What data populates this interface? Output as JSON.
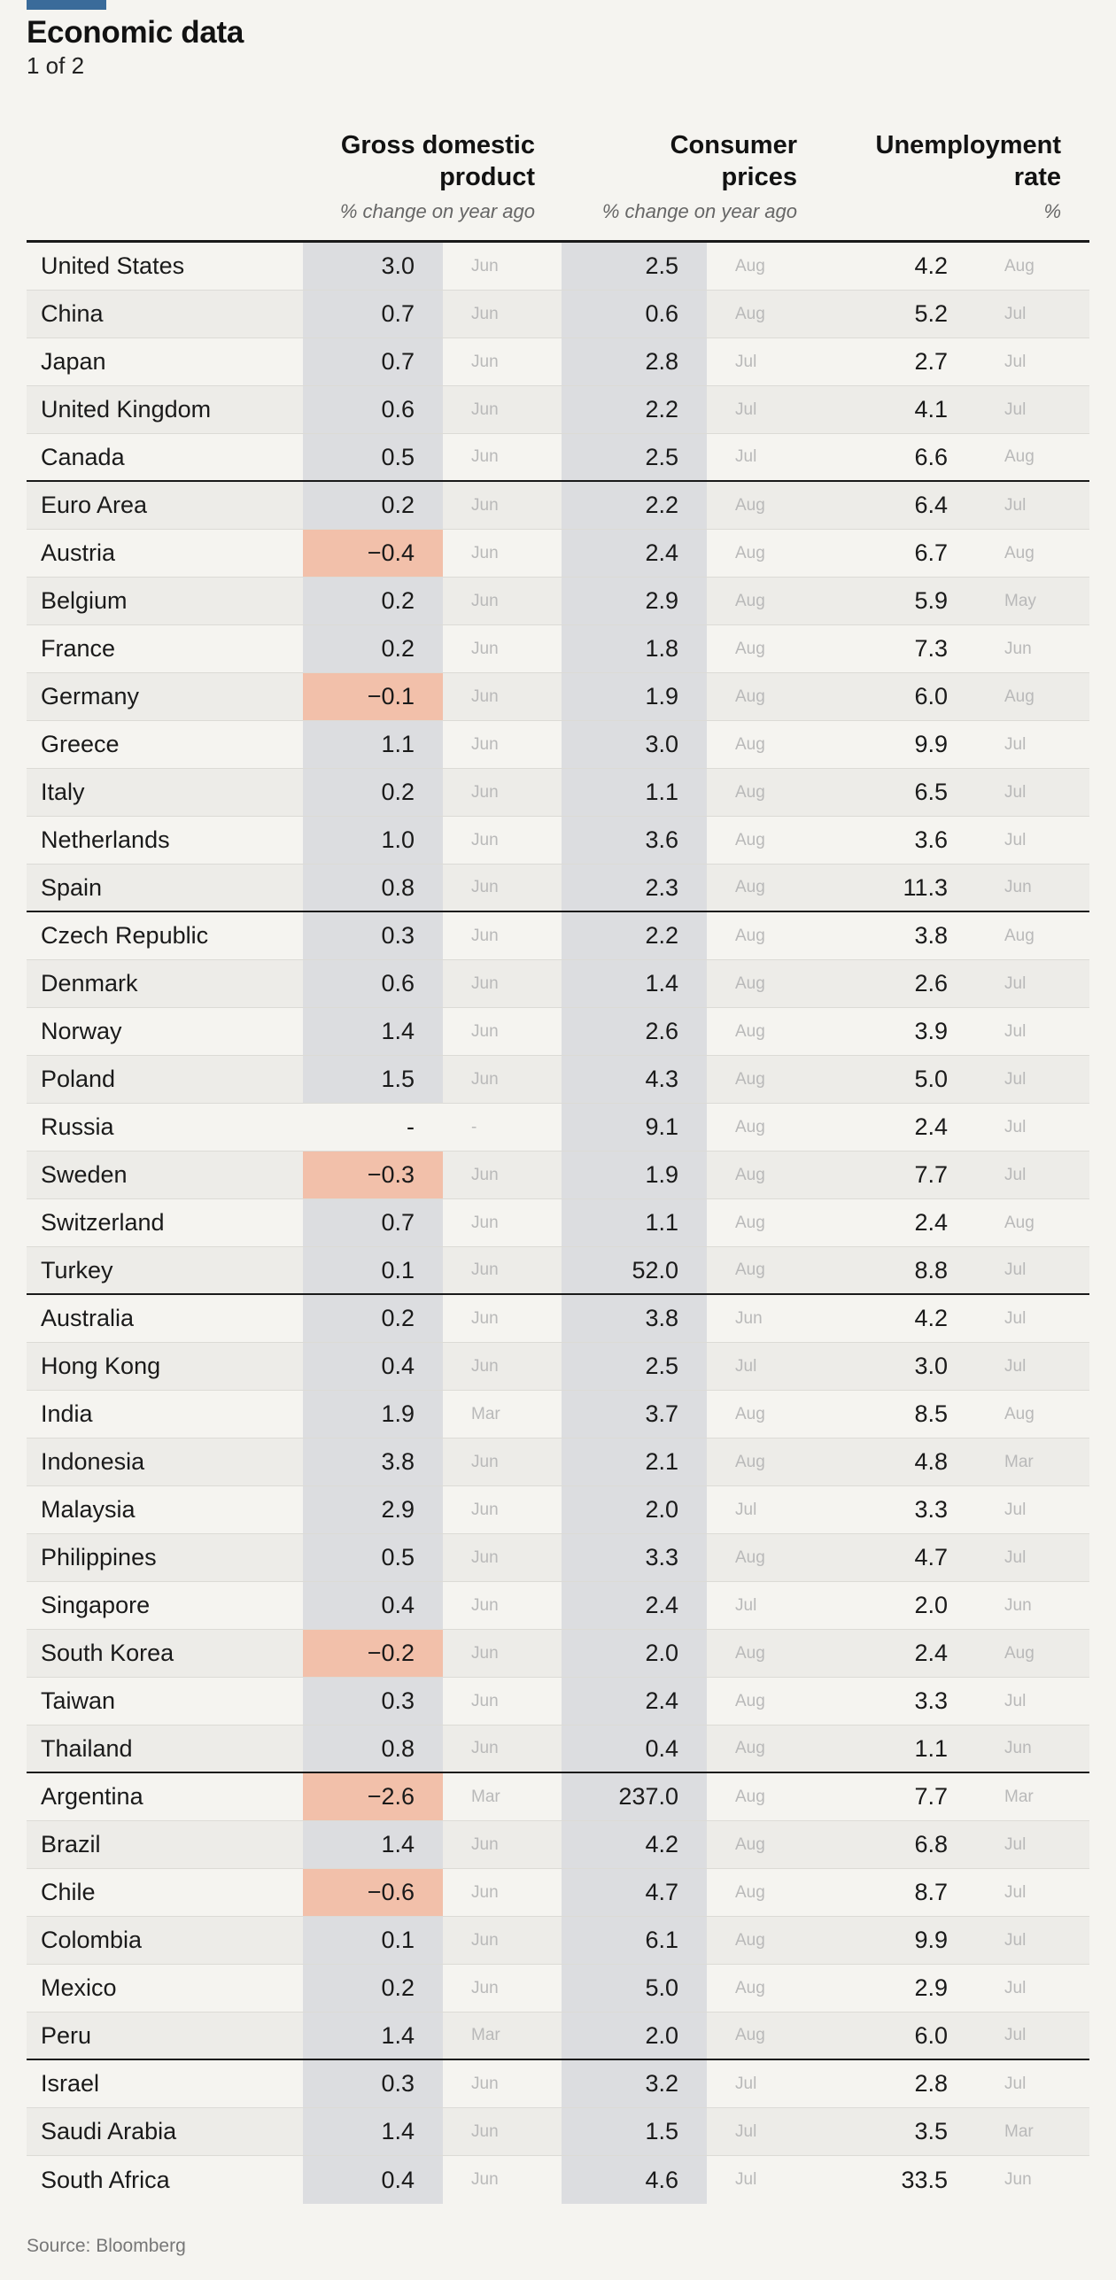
{
  "title": "Economic data",
  "subtitle": "1 of 2",
  "source": "Source: Bloomberg",
  "colors": {
    "accent_bar": "#3a6b9a",
    "value_fill": "#dcdde0",
    "negative_fill": "#f2c0aa"
  },
  "columns": [
    {
      "line1": "Gross domestic",
      "line2": "product",
      "unit": "% change on year ago"
    },
    {
      "line1": "Consumer",
      "line2": "prices",
      "unit": "% change on year ago"
    },
    {
      "line1": "Unemployment",
      "line2": "rate",
      "unit": "%"
    }
  ],
  "chart_data": {
    "type": "table",
    "title": "Economic data",
    "subtitle": "1 of 2",
    "columns": [
      "Gross domestic product",
      "Consumer prices",
      "Unemployment rate"
    ],
    "units": [
      "% change on year ago",
      "% change on year ago",
      "%"
    ],
    "groups": [
      {
        "rows": [
          [
            "United States",
            "3.0",
            "Jun",
            "2.5",
            "Aug",
            "4.2",
            "Aug"
          ],
          [
            "China",
            "0.7",
            "Jun",
            "0.6",
            "Aug",
            "5.2",
            "Jul"
          ],
          [
            "Japan",
            "0.7",
            "Jun",
            "2.8",
            "Jul",
            "2.7",
            "Jul"
          ],
          [
            "United Kingdom",
            "0.6",
            "Jun",
            "2.2",
            "Jul",
            "4.1",
            "Jul"
          ],
          [
            "Canada",
            "0.5",
            "Jun",
            "2.5",
            "Jul",
            "6.6",
            "Aug"
          ]
        ]
      },
      {
        "rows": [
          [
            "Euro Area",
            "0.2",
            "Jun",
            "2.2",
            "Aug",
            "6.4",
            "Jul"
          ],
          [
            "Austria",
            "−0.4",
            "Jun",
            "2.4",
            "Aug",
            "6.7",
            "Aug"
          ],
          [
            "Belgium",
            "0.2",
            "Jun",
            "2.9",
            "Aug",
            "5.9",
            "May"
          ],
          [
            "France",
            "0.2",
            "Jun",
            "1.8",
            "Aug",
            "7.3",
            "Jun"
          ],
          [
            "Germany",
            "−0.1",
            "Jun",
            "1.9",
            "Aug",
            "6.0",
            "Aug"
          ],
          [
            "Greece",
            "1.1",
            "Jun",
            "3.0",
            "Aug",
            "9.9",
            "Jul"
          ],
          [
            "Italy",
            "0.2",
            "Jun",
            "1.1",
            "Aug",
            "6.5",
            "Jul"
          ],
          [
            "Netherlands",
            "1.0",
            "Jun",
            "3.6",
            "Aug",
            "3.6",
            "Jul"
          ],
          [
            "Spain",
            "0.8",
            "Jun",
            "2.3",
            "Aug",
            "11.3",
            "Jun"
          ]
        ]
      },
      {
        "rows": [
          [
            "Czech Republic",
            "0.3",
            "Jun",
            "2.2",
            "Aug",
            "3.8",
            "Aug"
          ],
          [
            "Denmark",
            "0.6",
            "Jun",
            "1.4",
            "Aug",
            "2.6",
            "Jul"
          ],
          [
            "Norway",
            "1.4",
            "Jun",
            "2.6",
            "Aug",
            "3.9",
            "Jul"
          ],
          [
            "Poland",
            "1.5",
            "Jun",
            "4.3",
            "Aug",
            "5.0",
            "Jul"
          ],
          [
            "Russia",
            "-",
            "-",
            "9.1",
            "Aug",
            "2.4",
            "Jul"
          ],
          [
            "Sweden",
            "−0.3",
            "Jun",
            "1.9",
            "Aug",
            "7.7",
            "Jul"
          ],
          [
            "Switzerland",
            "0.7",
            "Jun",
            "1.1",
            "Aug",
            "2.4",
            "Aug"
          ],
          [
            "Turkey",
            "0.1",
            "Jun",
            "52.0",
            "Aug",
            "8.8",
            "Jul"
          ]
        ]
      },
      {
        "rows": [
          [
            "Australia",
            "0.2",
            "Jun",
            "3.8",
            "Jun",
            "4.2",
            "Jul"
          ],
          [
            "Hong Kong",
            "0.4",
            "Jun",
            "2.5",
            "Jul",
            "3.0",
            "Jul"
          ],
          [
            "India",
            "1.9",
            "Mar",
            "3.7",
            "Aug",
            "8.5",
            "Aug"
          ],
          [
            "Indonesia",
            "3.8",
            "Jun",
            "2.1",
            "Aug",
            "4.8",
            "Mar"
          ],
          [
            "Malaysia",
            "2.9",
            "Jun",
            "2.0",
            "Jul",
            "3.3",
            "Jul"
          ],
          [
            "Philippines",
            "0.5",
            "Jun",
            "3.3",
            "Aug",
            "4.7",
            "Jul"
          ],
          [
            "Singapore",
            "0.4",
            "Jun",
            "2.4",
            "Jul",
            "2.0",
            "Jun"
          ],
          [
            "South Korea",
            "−0.2",
            "Jun",
            "2.0",
            "Aug",
            "2.4",
            "Aug"
          ],
          [
            "Taiwan",
            "0.3",
            "Jun",
            "2.4",
            "Aug",
            "3.3",
            "Jul"
          ],
          [
            "Thailand",
            "0.8",
            "Jun",
            "0.4",
            "Aug",
            "1.1",
            "Jun"
          ]
        ]
      },
      {
        "rows": [
          [
            "Argentina",
            "−2.6",
            "Mar",
            "237.0",
            "Aug",
            "7.7",
            "Mar"
          ],
          [
            "Brazil",
            "1.4",
            "Jun",
            "4.2",
            "Aug",
            "6.8",
            "Jul"
          ],
          [
            "Chile",
            "−0.6",
            "Jun",
            "4.7",
            "Aug",
            "8.7",
            "Jul"
          ],
          [
            "Colombia",
            "0.1",
            "Jun",
            "6.1",
            "Aug",
            "9.9",
            "Jul"
          ],
          [
            "Mexico",
            "0.2",
            "Jun",
            "5.0",
            "Aug",
            "2.9",
            "Jul"
          ],
          [
            "Peru",
            "1.4",
            "Mar",
            "2.0",
            "Aug",
            "6.0",
            "Jul"
          ]
        ]
      },
      {
        "rows": [
          [
            "Israel",
            "0.3",
            "Jun",
            "3.2",
            "Jul",
            "2.8",
            "Jul"
          ],
          [
            "Saudi Arabia",
            "1.4",
            "Jun",
            "1.5",
            "Jul",
            "3.5",
            "Mar"
          ],
          [
            "South Africa",
            "0.4",
            "Jun",
            "4.6",
            "Jul",
            "33.5",
            "Jun"
          ]
        ]
      }
    ]
  }
}
